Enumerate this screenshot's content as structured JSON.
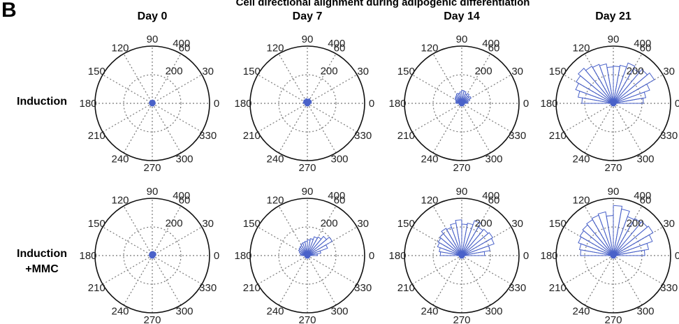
{
  "figure": {
    "panel_letter": "B",
    "title": "Cell directional alignment during adipogenic differentiation",
    "columns": [
      "Day 0",
      "Day 7",
      "Day 14",
      "Day 21"
    ],
    "rows": [
      [
        "Induction"
      ],
      [
        "Induction",
        "+MMC"
      ]
    ]
  },
  "colors": {
    "bar": "#4a62c9",
    "grid": "#777777",
    "axis": "#111111"
  },
  "chart_data": {
    "type": "polar-histogram",
    "angle_ticks": [
      0,
      30,
      60,
      90,
      120,
      150,
      180,
      210,
      240,
      270,
      300,
      330
    ],
    "radial_ticks": [
      200,
      400
    ],
    "rlim": [
      0,
      400
    ],
    "angle_unit": "degrees",
    "grid": true,
    "bin_width_deg": 10,
    "bin_centers_deg": [
      5,
      15,
      25,
      35,
      45,
      55,
      65,
      75,
      85,
      95,
      105,
      115,
      125,
      135,
      145,
      155,
      165,
      175
    ],
    "panels": [
      {
        "row": "Induction",
        "column": "Day 0",
        "counts": [
          22,
          20,
          18,
          20,
          22,
          24,
          20,
          22,
          24,
          22,
          20,
          22,
          24,
          20,
          18,
          20,
          22,
          20
        ]
      },
      {
        "row": "Induction",
        "column": "Day 7",
        "counts": [
          28,
          26,
          30,
          32,
          28,
          30,
          35,
          30,
          28,
          30,
          34,
          30,
          28,
          32,
          30,
          26,
          28,
          30
        ]
      },
      {
        "row": "Induction",
        "column": "Day 14",
        "counts": [
          40,
          45,
          60,
          75,
          65,
          80,
          70,
          85,
          90,
          80,
          70,
          75,
          65,
          60,
          55,
          45,
          40,
          42
        ]
      },
      {
        "row": "Induction",
        "column": "Day 21",
        "counts": [
          210,
          230,
          270,
          330,
          310,
          280,
          300,
          270,
          260,
          255,
          280,
          290,
          300,
          320,
          300,
          280,
          250,
          220
        ]
      },
      {
        "row": "Induction +MMC",
        "column": "Day 0",
        "counts": [
          25,
          24,
          28,
          26,
          30,
          28,
          26,
          30,
          28,
          26,
          28,
          24,
          26,
          22,
          24,
          22,
          20,
          22
        ]
      },
      {
        "row": "Induction +MMC",
        "column": "Day 7",
        "counts": [
          70,
          95,
          150,
          200,
          175,
          150,
          140,
          120,
          110,
          100,
          95,
          90,
          80,
          75,
          70,
          60,
          50,
          45
        ]
      },
      {
        "row": "Induction +MMC",
        "column": "Day 14",
        "counts": [
          160,
          200,
          240,
          250,
          240,
          230,
          260,
          230,
          220,
          250,
          230,
          210,
          220,
          200,
          190,
          180,
          160,
          150
        ]
      },
      {
        "row": "Induction +MMC",
        "column": "Day 21",
        "counts": [
          220,
          250,
          290,
          320,
          310,
          300,
          290,
          330,
          350,
          280,
          310,
          300,
          290,
          280,
          270,
          260,
          240,
          230
        ]
      }
    ]
  }
}
